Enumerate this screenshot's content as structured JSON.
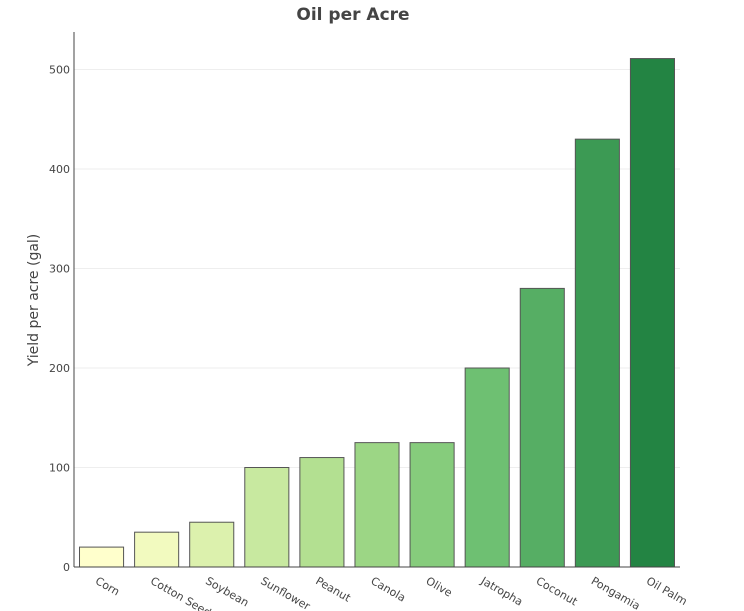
{
  "chart_data": {
    "type": "bar",
    "title": "Oil per Acre",
    "xlabel": "",
    "ylabel": "Yield per acre (gal)",
    "categories": [
      "Corn",
      "Cotton Seed",
      "Soybean",
      "Sunflower",
      "Peanut",
      "Canola",
      "Olive",
      "Jatropha",
      "Coconut",
      "Pongamia",
      "Oil Palm"
    ],
    "values": [
      20,
      35,
      45,
      100,
      110,
      125,
      125,
      200,
      280,
      430,
      511
    ],
    "colors": [
      "#ffffcc",
      "#f2fabf",
      "#dcf1ad",
      "#c8e9a0",
      "#b3e091",
      "#9cd685",
      "#86cc7c",
      "#6ec072",
      "#56ae64",
      "#3c9a54",
      "#238443"
    ],
    "yticks": [
      0,
      100,
      200,
      300,
      400,
      500
    ],
    "ylim": [
      0,
      538
    ],
    "grid": true,
    "legend": "none"
  }
}
